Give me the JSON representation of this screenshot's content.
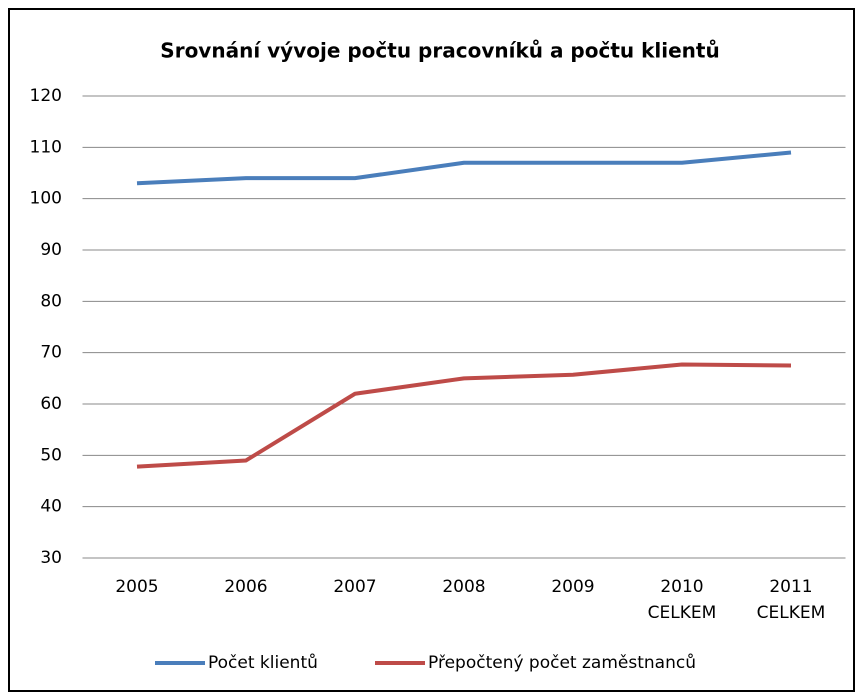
{
  "chart_data": {
    "type": "line",
    "title": "Srovnání vývoje počtu pracovníků a počtu klientů",
    "categories": [
      "2005",
      "2006",
      "2007",
      "2008",
      "2009",
      "2010 CELKEM",
      "2011 CELKEM"
    ],
    "series": [
      {
        "name": "Počet klientů",
        "color": "#4a7ebb",
        "values": [
          103,
          104,
          104,
          107,
          107,
          107,
          109
        ]
      },
      {
        "name": "Přepočtený počet zaměstnanců",
        "color": "#be4b48",
        "values": [
          47.8,
          49,
          62,
          65,
          65.7,
          67.7,
          67.5
        ]
      }
    ],
    "ylim": [
      30,
      120
    ],
    "yticks": [
      30,
      40,
      50,
      60,
      70,
      80,
      90,
      100,
      110,
      120
    ],
    "grid": true,
    "legend": "bottom"
  }
}
